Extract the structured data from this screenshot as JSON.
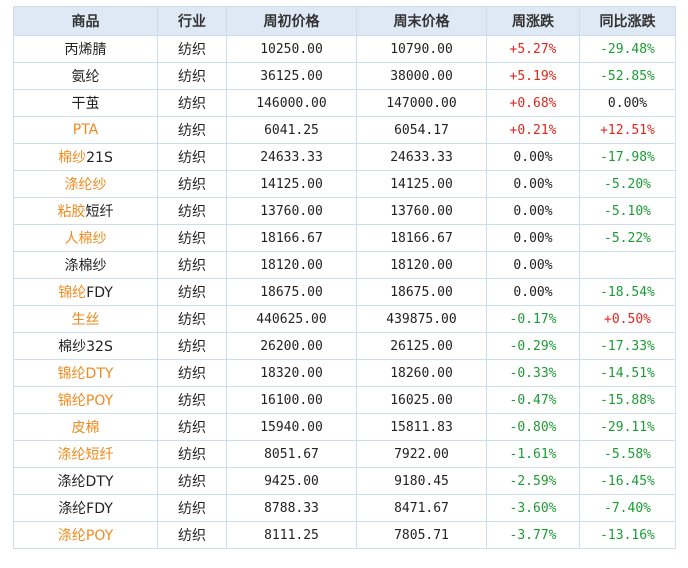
{
  "table": {
    "headers": [
      "商品",
      "行业",
      "周初价格",
      "周末价格",
      "周涨跌",
      "同比涨跌"
    ],
    "colors": {
      "up": "#e0261f",
      "down": "#1e9b35",
      "link": "#f08a1c",
      "header_bg": "#dfe9f5",
      "border": "#cfdceb"
    },
    "rows": [
      {
        "name_link": "",
        "name_plain": "丙烯腈",
        "industry": "纺织",
        "start": "10250.00",
        "end": "10790.00",
        "week": "+5.27%",
        "week_dir": "up",
        "yoy": "-29.48%",
        "yoy_dir": "down"
      },
      {
        "name_link": "",
        "name_plain": "氨纶",
        "industry": "纺织",
        "start": "36125.00",
        "end": "38000.00",
        "week": "+5.19%",
        "week_dir": "up",
        "yoy": "-52.85%",
        "yoy_dir": "down"
      },
      {
        "name_link": "",
        "name_plain": "干茧",
        "industry": "纺织",
        "start": "146000.00",
        "end": "147000.00",
        "week": "+0.68%",
        "week_dir": "up",
        "yoy": "0.00%",
        "yoy_dir": "flat"
      },
      {
        "name_link": "PTA",
        "name_plain": "",
        "industry": "纺织",
        "start": "6041.25",
        "end": "6054.17",
        "week": "+0.21%",
        "week_dir": "up",
        "yoy": "+12.51%",
        "yoy_dir": "up"
      },
      {
        "name_link": "棉纱",
        "name_plain": "21S",
        "industry": "纺织",
        "start": "24633.33",
        "end": "24633.33",
        "week": "0.00%",
        "week_dir": "flat",
        "yoy": "-17.98%",
        "yoy_dir": "down"
      },
      {
        "name_link": "涤纶纱",
        "name_plain": "",
        "industry": "纺织",
        "start": "14125.00",
        "end": "14125.00",
        "week": "0.00%",
        "week_dir": "flat",
        "yoy": "-5.20%",
        "yoy_dir": "down"
      },
      {
        "name_link": "粘胶",
        "name_plain": "短纤",
        "industry": "纺织",
        "start": "13760.00",
        "end": "13760.00",
        "week": "0.00%",
        "week_dir": "flat",
        "yoy": "-5.10%",
        "yoy_dir": "down"
      },
      {
        "name_link": "人棉纱",
        "name_plain": "",
        "industry": "纺织",
        "start": "18166.67",
        "end": "18166.67",
        "week": "0.00%",
        "week_dir": "flat",
        "yoy": "-5.22%",
        "yoy_dir": "down"
      },
      {
        "name_link": "",
        "name_plain": "涤棉纱",
        "industry": "纺织",
        "start": "18120.00",
        "end": "18120.00",
        "week": "0.00%",
        "week_dir": "flat",
        "yoy": "",
        "yoy_dir": "flat"
      },
      {
        "name_link": "锦纶",
        "name_plain": "FDY",
        "industry": "纺织",
        "start": "18675.00",
        "end": "18675.00",
        "week": "0.00%",
        "week_dir": "flat",
        "yoy": "-18.54%",
        "yoy_dir": "down"
      },
      {
        "name_link": "生丝",
        "name_plain": "",
        "industry": "纺织",
        "start": "440625.00",
        "end": "439875.00",
        "week": "-0.17%",
        "week_dir": "down",
        "yoy": "+0.50%",
        "yoy_dir": "up"
      },
      {
        "name_link": "",
        "name_plain": "棉纱32S",
        "industry": "纺织",
        "start": "26200.00",
        "end": "26125.00",
        "week": "-0.29%",
        "week_dir": "down",
        "yoy": "-17.33%",
        "yoy_dir": "down"
      },
      {
        "name_link": "锦纶DTY",
        "name_plain": "",
        "industry": "纺织",
        "start": "18320.00",
        "end": "18260.00",
        "week": "-0.33%",
        "week_dir": "down",
        "yoy": "-14.51%",
        "yoy_dir": "down"
      },
      {
        "name_link": "锦纶POY",
        "name_plain": "",
        "industry": "纺织",
        "start": "16100.00",
        "end": "16025.00",
        "week": "-0.47%",
        "week_dir": "down",
        "yoy": "-15.88%",
        "yoy_dir": "down"
      },
      {
        "name_link": "皮棉",
        "name_plain": "",
        "industry": "纺织",
        "start": "15940.00",
        "end": "15811.83",
        "week": "-0.80%",
        "week_dir": "down",
        "yoy": "-29.11%",
        "yoy_dir": "down"
      },
      {
        "name_link": "涤纶短纤",
        "name_plain": "",
        "industry": "纺织",
        "start": "8051.67",
        "end": "7922.00",
        "week": "-1.61%",
        "week_dir": "down",
        "yoy": "-5.58%",
        "yoy_dir": "down"
      },
      {
        "name_link": "",
        "name_plain": "涤纶DTY",
        "industry": "纺织",
        "start": "9425.00",
        "end": "9180.45",
        "week": "-2.59%",
        "week_dir": "down",
        "yoy": "-16.45%",
        "yoy_dir": "down"
      },
      {
        "name_link": "",
        "name_plain": "涤纶FDY",
        "industry": "纺织",
        "start": "8788.33",
        "end": "8471.67",
        "week": "-3.60%",
        "week_dir": "down",
        "yoy": "-7.40%",
        "yoy_dir": "down"
      },
      {
        "name_link": "涤纶POY",
        "name_plain": "",
        "industry": "纺织",
        "start": "8111.25",
        "end": "7805.71",
        "week": "-3.77%",
        "week_dir": "down",
        "yoy": "-13.16%",
        "yoy_dir": "down"
      }
    ]
  }
}
